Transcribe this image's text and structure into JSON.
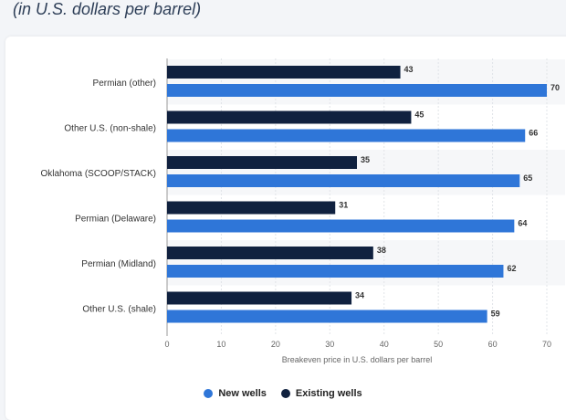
{
  "chart_data": {
    "type": "bar",
    "orientation": "horizontal",
    "subtitle": "(in U.S. dollars per barrel)",
    "categories": [
      "Permian (other)",
      "Other U.S. (non-shale)",
      "Oklahoma (SCOOP/STACK)",
      "Permian (Delaware)",
      "Permian (Midland)",
      "Other U.S. (shale)"
    ],
    "series": [
      {
        "name": "Existing wells",
        "color": "#10213f",
        "values": [
          43,
          45,
          35,
          31,
          38,
          34
        ]
      },
      {
        "name": "New wells",
        "color": "#2f76d8",
        "values": [
          70,
          66,
          65,
          64,
          62,
          59
        ]
      }
    ],
    "xlabel": "Breakeven price in U.S. dollars per barrel",
    "xlim": [
      0,
      70
    ],
    "xticks": [
      0,
      10,
      20,
      30,
      40,
      50,
      60,
      70
    ],
    "grid": true,
    "legend": [
      {
        "label": "New wells",
        "color": "#2f76d8"
      },
      {
        "label": "Existing wells",
        "color": "#10213f"
      }
    ]
  }
}
